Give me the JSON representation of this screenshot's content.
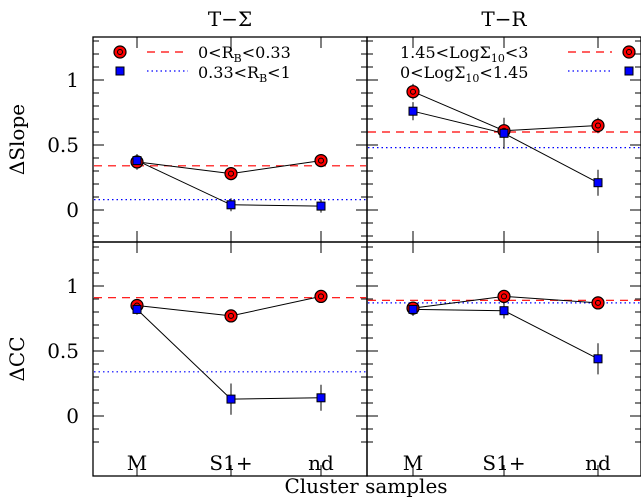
{
  "figure": {
    "xlabel": "Cluster samples"
  },
  "legends": {
    "left": {
      "red": "0<R_B<0.33",
      "blue": "0.33<R_B<1"
    },
    "right": {
      "red": "1.45<LogΣ_10<3",
      "blue": "0<LogΣ_10<1.45"
    }
  },
  "colors": {
    "red": "#ff0000",
    "blue": "#0000ff",
    "axis": "#000000"
  },
  "chart_data": [
    {
      "type": "line",
      "panel": "top-left",
      "title": "T−Σ",
      "ylabel": "ΔSlope",
      "categories": [
        "M",
        "S1+",
        "nd"
      ],
      "ylim": [
        -0.25,
        1.35
      ],
      "yticks": [
        "0",
        "0.5",
        "1"
      ],
      "series": [
        {
          "name": "0<R_B<0.33",
          "color": "red",
          "marker": "circle",
          "values": [
            0.37,
            0.28,
            0.38
          ],
          "err": [
            0.06,
            0.05,
            0.04
          ],
          "reference": 0.34
        },
        {
          "name": "0.33<R_B<1",
          "color": "blue",
          "marker": "square",
          "values": [
            0.38,
            0.04,
            0.03
          ],
          "err": [
            0.05,
            0.05,
            0.05
          ],
          "reference": 0.08
        }
      ]
    },
    {
      "type": "line",
      "panel": "top-right",
      "title": "T−R",
      "ylabel": "",
      "categories": [
        "M",
        "S1+",
        "nd"
      ],
      "ylim": [
        -0.25,
        1.35
      ],
      "yticks": [
        "0",
        "0.5",
        "1"
      ],
      "series": [
        {
          "name": "1.45<LogΣ_10<3",
          "color": "red",
          "marker": "circle",
          "values": [
            0.91,
            0.61,
            0.65
          ],
          "err": [
            0.06,
            0.06,
            0.06
          ],
          "reference": 0.6
        },
        {
          "name": "0<LogΣ_10<1.45",
          "color": "blue",
          "marker": "square",
          "values": [
            0.76,
            0.59,
            0.21
          ],
          "err": [
            0.07,
            0.12,
            0.1
          ],
          "reference": 0.48
        }
      ]
    },
    {
      "type": "line",
      "panel": "bottom-left",
      "title": "",
      "ylabel": "ΔCC",
      "categories": [
        "M",
        "S1+",
        "nd"
      ],
      "ylim": [
        -0.25,
        1.35
      ],
      "yticks": [
        "0",
        "0.5",
        "1"
      ],
      "series": [
        {
          "name": "0<R_B<0.33",
          "color": "red",
          "marker": "circle",
          "values": [
            0.85,
            0.77,
            0.92
          ],
          "err": [
            0.04,
            0.04,
            0.03
          ],
          "reference": 0.91
        },
        {
          "name": "0.33<R_B<1",
          "color": "blue",
          "marker": "square",
          "values": [
            0.82,
            0.13,
            0.14
          ],
          "err": [
            0.04,
            0.12,
            0.1
          ],
          "reference": 0.34
        }
      ]
    },
    {
      "type": "line",
      "panel": "bottom-right",
      "title": "",
      "ylabel": "",
      "categories": [
        "M",
        "S1+",
        "nd"
      ],
      "ylim": [
        -0.25,
        1.35
      ],
      "yticks": [
        "0",
        "0.5",
        "1"
      ],
      "series": [
        {
          "name": "1.45<LogΣ_10<3",
          "color": "red",
          "marker": "circle",
          "values": [
            0.83,
            0.92,
            0.87
          ],
          "err": [
            0.04,
            0.04,
            0.05
          ],
          "reference": 0.89
        },
        {
          "name": "0<LogΣ_10<1.45",
          "color": "blue",
          "marker": "square",
          "values": [
            0.82,
            0.81,
            0.44
          ],
          "err": [
            0.05,
            0.06,
            0.12
          ],
          "reference": 0.87
        }
      ]
    }
  ]
}
